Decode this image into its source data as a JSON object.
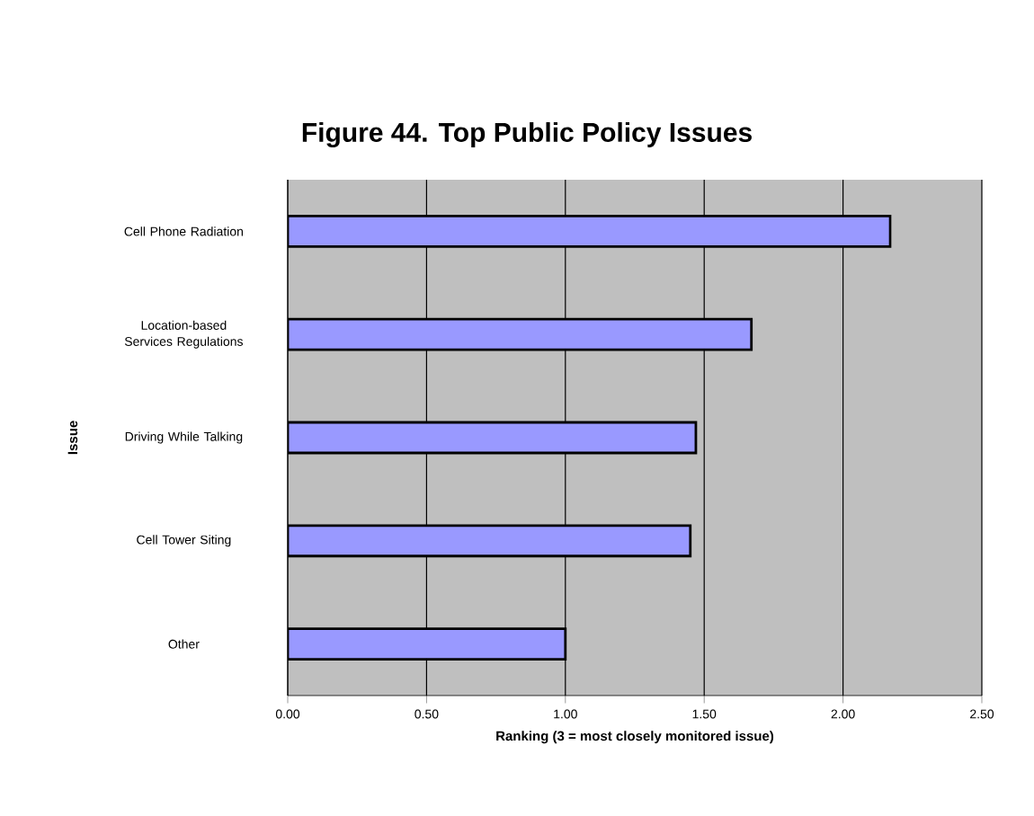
{
  "chart_data": {
    "type": "bar",
    "orientation": "horizontal",
    "title": "Figure 44. Top Public Policy Issues",
    "categories": [
      "Cell Phone Radiation",
      "Location-based Services Regulations",
      "Driving While Talking",
      "Cell Tower Siting",
      "Other"
    ],
    "values": [
      2.17,
      1.67,
      1.47,
      1.45,
      1.0
    ],
    "color": "#9999ff",
    "xlabel": "Ranking (3 = most closely monitored issue)",
    "ylabel": "Issue",
    "xlim": [
      0,
      2.5
    ],
    "xticks": [
      {
        "value": 0,
        "label": "0.00"
      },
      {
        "value": 0.5,
        "label": "0.50"
      },
      {
        "value": 1,
        "label": "1.00"
      },
      {
        "value": 1.5,
        "label": "1.50"
      },
      {
        "value": 2,
        "label": "2.00"
      },
      {
        "value": 2.5,
        "label": "2.50"
      }
    ],
    "grid": "x"
  }
}
